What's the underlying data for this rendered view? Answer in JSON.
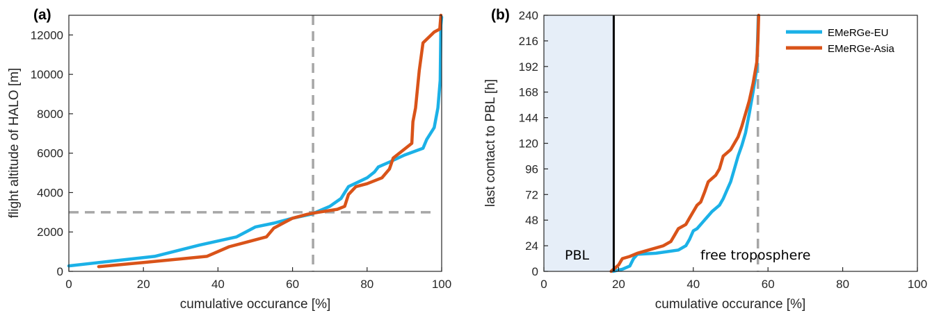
{
  "chart_data": [
    {
      "type": "line",
      "panel_label": "(a)",
      "xlabel": "cumulative occurance [%]",
      "ylabel": "flight altitude of HALO [m]",
      "xlim": [
        0,
        100
      ],
      "ylim": [
        0,
        13000
      ],
      "xticks": [
        "0",
        "20",
        "40",
        "60",
        "80",
        "100"
      ],
      "yticks": [
        "0",
        "2000",
        "4000",
        "6000",
        "8000",
        "10000",
        "12000"
      ],
      "xtick_values": [
        0,
        20,
        40,
        60,
        80,
        100
      ],
      "ytick_values": [
        0,
        2000,
        4000,
        6000,
        8000,
        10000,
        12000
      ],
      "grid": false,
      "reference_lines": {
        "x": 65.5,
        "y": 3000,
        "style": "dashed",
        "color": "#a6a6a6"
      },
      "series": [
        {
          "name": "EMeRGe-EU",
          "color": "#1bb1e7",
          "points": [
            [
              0,
              280
            ],
            [
              10,
              490
            ],
            [
              23,
              760
            ],
            [
              35,
              1330
            ],
            [
              45,
              1750
            ],
            [
              50,
              2250
            ],
            [
              55,
              2450
            ],
            [
              60,
              2700
            ],
            [
              65,
              2900
            ],
            [
              70,
              3300
            ],
            [
              73,
              3700
            ],
            [
              74,
              4000
            ],
            [
              75,
              4300
            ],
            [
              80,
              4750
            ],
            [
              82,
              5050
            ],
            [
              83,
              5300
            ],
            [
              86,
              5550
            ],
            [
              90,
              5900
            ],
            [
              95,
              6250
            ],
            [
              96,
              6700
            ],
            [
              98,
              7300
            ],
            [
              99,
              8300
            ],
            [
              99.6,
              9700
            ],
            [
              99.8,
              12500
            ],
            [
              100,
              12900
            ]
          ]
        },
        {
          "name": "EMeRGe-Asia",
          "color": "#d95319",
          "points": [
            [
              8,
              240
            ],
            [
              20,
              450
            ],
            [
              37,
              760
            ],
            [
              43,
              1250
            ],
            [
              48,
              1500
            ],
            [
              53,
              1750
            ],
            [
              55,
              2200
            ],
            [
              58,
              2500
            ],
            [
              60,
              2700
            ],
            [
              64,
              2900
            ],
            [
              67,
              3000
            ],
            [
              72,
              3150
            ],
            [
              74,
              3300
            ],
            [
              75,
              3900
            ],
            [
              77,
              4300
            ],
            [
              80,
              4450
            ],
            [
              84,
              4750
            ],
            [
              86,
              5200
            ],
            [
              87,
              5750
            ],
            [
              90,
              6200
            ],
            [
              92,
              6500
            ],
            [
              92.3,
              7600
            ],
            [
              93,
              8300
            ],
            [
              94,
              10200
            ],
            [
              95,
              11600
            ],
            [
              98,
              12150
            ],
            [
              99.5,
              12300
            ],
            [
              99.8,
              13000
            ]
          ]
        }
      ]
    },
    {
      "type": "line",
      "panel_label": "(b)",
      "xlabel": "cumulative occurance [%]",
      "ylabel": "last contact to PBL [h]",
      "xlim": [
        0,
        100
      ],
      "ylim": [
        0,
        240
      ],
      "xticks": [
        "0",
        "20",
        "40",
        "60",
        "80",
        "100"
      ],
      "yticks": [
        "0",
        "24",
        "48",
        "72",
        "96",
        "120",
        "144",
        "168",
        "192",
        "216",
        "240"
      ],
      "xtick_values": [
        0,
        20,
        40,
        60,
        80,
        100
      ],
      "ytick_values": [
        0,
        24,
        48,
        72,
        96,
        120,
        144,
        168,
        192,
        216,
        240
      ],
      "grid": false,
      "legend_position": "top-right",
      "shaded_region": {
        "x_range": [
          0,
          18.7
        ],
        "label": "PBL",
        "color": "#e6eef8"
      },
      "boundary_line": {
        "x": 18.7,
        "color": "#000000"
      },
      "reference_line": {
        "x": 57.3,
        "style": "dashed",
        "color": "#a6a6a6"
      },
      "region_labels": {
        "left": "PBL",
        "right": "free troposphere"
      },
      "series": [
        {
          "name": "EMeRGe-EU",
          "color": "#1bb1e7",
          "points": [
            [
              18.5,
              0
            ],
            [
              21,
              2
            ],
            [
              23,
              5
            ],
            [
              24,
              12
            ],
            [
              25,
              16
            ],
            [
              30,
              17
            ],
            [
              36,
              20
            ],
            [
              38,
              24
            ],
            [
              39,
              30
            ],
            [
              40,
              38
            ],
            [
              41,
              40
            ],
            [
              43,
              48
            ],
            [
              45,
              56
            ],
            [
              47,
              62
            ],
            [
              48,
              68
            ],
            [
              49,
              76
            ],
            [
              50,
              84
            ],
            [
              51,
              96
            ],
            [
              52,
              108
            ],
            [
              53,
              118
            ],
            [
              54,
              130
            ],
            [
              55,
              148
            ],
            [
              56,
              168
            ],
            [
              57,
              190
            ],
            [
              57.2,
              216
            ],
            [
              57.4,
              238
            ]
          ]
        },
        {
          "name": "EMeRGe-Asia",
          "color": "#d95319",
          "points": [
            [
              18,
              0
            ],
            [
              20,
              6
            ],
            [
              21,
              12
            ],
            [
              23,
              14
            ],
            [
              25,
              17
            ],
            [
              28,
              20
            ],
            [
              32,
              24
            ],
            [
              34,
              28
            ],
            [
              35,
              34
            ],
            [
              36,
              40
            ],
            [
              38,
              44
            ],
            [
              39,
              50
            ],
            [
              40,
              56
            ],
            [
              41,
              62
            ],
            [
              42,
              65
            ],
            [
              43,
              74
            ],
            [
              44,
              84
            ],
            [
              46,
              90
            ],
            [
              47,
              96
            ],
            [
              48,
              108
            ],
            [
              50,
              114
            ],
            [
              52,
              126
            ],
            [
              53,
              136
            ],
            [
              54,
              148
            ],
            [
              55,
              160
            ],
            [
              56,
              176
            ],
            [
              57,
              196
            ],
            [
              57.3,
              216
            ],
            [
              57.5,
              240
            ]
          ]
        }
      ]
    }
  ]
}
